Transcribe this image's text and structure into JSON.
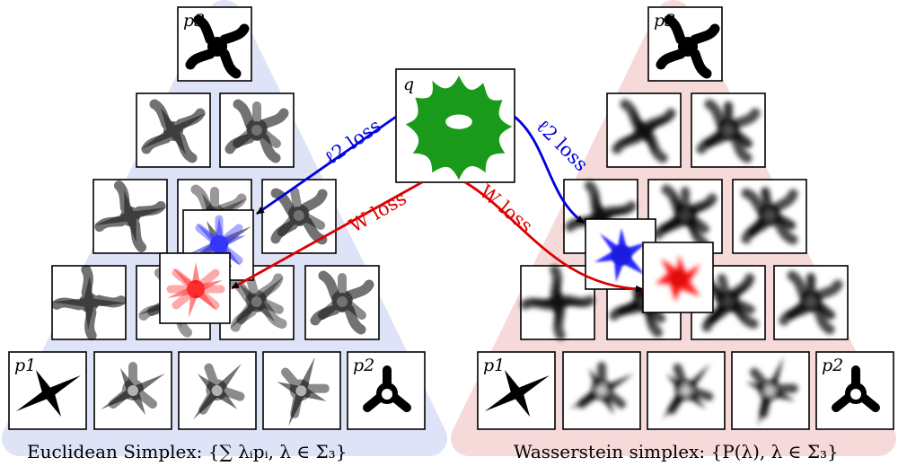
{
  "labels": {
    "p1": "p1",
    "p2": "p2",
    "p3": "p3",
    "q": "q"
  },
  "arrows": {
    "l2_loss": "ℓ2 loss",
    "w_loss": "W loss"
  },
  "captions": {
    "euclidean": "Euclidean Simplex: {∑ λᵢpᵢ, λ ∈ Σ₃}",
    "wasserstein": "Wasserstein simplex: {P(λ), λ ∈ Σ₃}"
  },
  "colors": {
    "euclidean_bg": "#dfe3f7",
    "wasserstein_bg": "#f6dada",
    "target_shape": "#1a9a1a",
    "l2": "#0000dd",
    "w": "#dd0000"
  }
}
